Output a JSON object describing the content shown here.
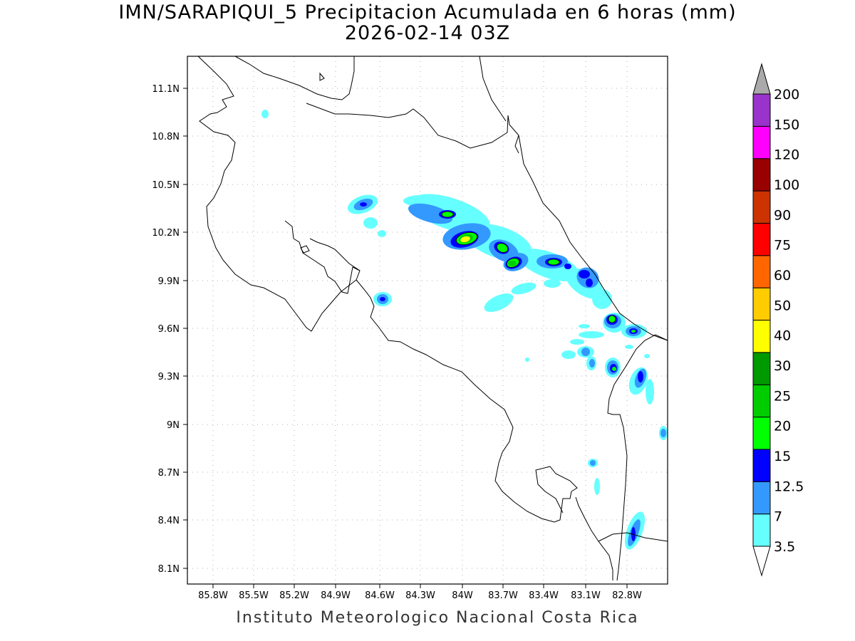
{
  "header": {
    "title_line1": "IMN/SARAPIQUI_5 Precipitacion Acumulada en 6 horas (mm)",
    "title_line2": "2026-02-14 03Z"
  },
  "footer": {
    "credit": "Instituto Meteorologico Nacional Costa Rica"
  },
  "axes": {
    "x_ticks": [
      "85.8W",
      "85.5W",
      "85.2W",
      "84.9W",
      "84.6W",
      "84.3W",
      "84W",
      "83.7W",
      "83.4W",
      "83.1W",
      "82.8W"
    ],
    "y_ticks": [
      "11.1N",
      "10.8N",
      "10.5N",
      "10.2N",
      "9.9N",
      "9.6N",
      "9.3N",
      "9N",
      "8.7N",
      "8.4N",
      "8.1N"
    ]
  },
  "colorbar": {
    "levels": [
      {
        "label": "3.5",
        "color": "#66ffff"
      },
      {
        "label": "7",
        "color": "#3399ff"
      },
      {
        "label": "12.5",
        "color": "#0000ff"
      },
      {
        "label": "15",
        "color": "#00ff00"
      },
      {
        "label": "20",
        "color": "#00cc00"
      },
      {
        "label": "25",
        "color": "#009900"
      },
      {
        "label": "30",
        "color": "#ffff00"
      },
      {
        "label": "40",
        "color": "#ffcc00"
      },
      {
        "label": "50",
        "color": "#ff6600"
      },
      {
        "label": "60",
        "color": "#ff0000"
      },
      {
        "label": "75",
        "color": "#cc3300"
      },
      {
        "label": "90",
        "color": "#990000"
      },
      {
        "label": "100",
        "color": "#ff00ff"
      },
      {
        "label": "120",
        "color": "#9933cc"
      },
      {
        "label": "150",
        "color": "#f5f5f5"
      },
      {
        "label": "200",
        "color": "#aaaaaa"
      }
    ]
  }
}
